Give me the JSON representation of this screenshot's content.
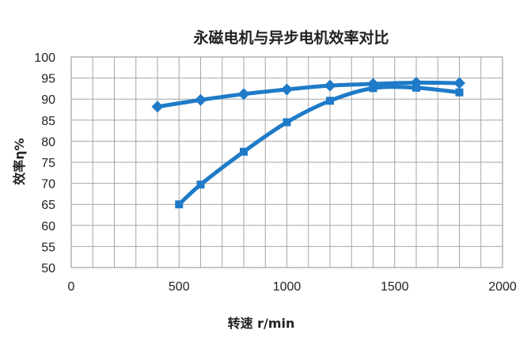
{
  "chart_data": {
    "type": "line",
    "title": "永磁电机与异步电机效率对比",
    "xlabel": "转速 r/min",
    "ylabel": "效率η%",
    "xlim": [
      0,
      2000
    ],
    "ylim": [
      50,
      100
    ],
    "xticks": [
      0,
      500,
      1000,
      1500,
      2000
    ],
    "yticks": [
      50,
      55,
      60,
      65,
      70,
      75,
      80,
      85,
      90,
      95,
      100
    ],
    "x_grid_step": 100,
    "grid": true,
    "legend": "none",
    "series": [
      {
        "marker": "diamond",
        "color": "#1f7bc8",
        "x": [
          400,
          600,
          800,
          1000,
          1200,
          1400,
          1600,
          1800
        ],
        "y": [
          88.2,
          89.8,
          91.2,
          92.3,
          93.2,
          93.6,
          93.9,
          93.8
        ]
      },
      {
        "marker": "square",
        "color": "#1f7bc8",
        "x": [
          500,
          600,
          800,
          1000,
          1200,
          1400,
          1600,
          1800
        ],
        "y": [
          65.0,
          69.7,
          77.5,
          84.5,
          89.6,
          92.6,
          92.7,
          91.6
        ]
      }
    ]
  }
}
